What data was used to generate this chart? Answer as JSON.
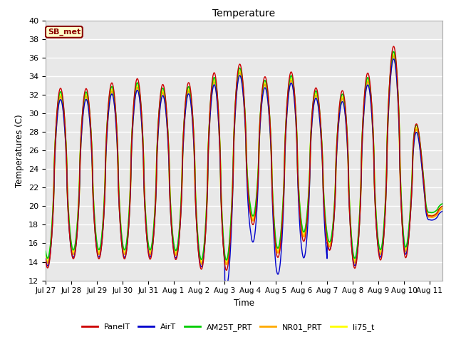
{
  "title": "Temperature",
  "ylabel": "Temperatures (C)",
  "xlabel": "Time",
  "ylim": [
    12,
    40
  ],
  "yticks": [
    12,
    14,
    16,
    18,
    20,
    22,
    24,
    26,
    28,
    30,
    32,
    34,
    36,
    38,
    40
  ],
  "plot_bg_color": "#e8e8e8",
  "fig_bg_color": "#ffffff",
  "grid_color": "#ffffff",
  "site_label": "SB_met",
  "site_label_bg": "#ffffcc",
  "site_label_border": "#8b0000",
  "lines": {
    "PanelT": {
      "color": "#cc0000",
      "lw": 1.0,
      "zorder": 5
    },
    "AirT": {
      "color": "#0000cc",
      "lw": 1.0,
      "zorder": 6
    },
    "AM25T_PRT": {
      "color": "#00cc00",
      "lw": 1.2,
      "zorder": 4
    },
    "NR01_PRT": {
      "color": "#ffaa00",
      "lw": 1.5,
      "zorder": 3
    },
    "li75_t": {
      "color": "#ffff00",
      "lw": 1.5,
      "zorder": 2
    }
  },
  "legend_colors": {
    "PanelT": "#cc0000",
    "AirT": "#0000cc",
    "AM25T_PRT": "#00cc00",
    "NR01_PRT": "#ffaa00",
    "li75_t": "#ffff00"
  },
  "n_days": 15.5,
  "xtick_days": [
    0,
    1,
    2,
    3,
    4,
    5,
    6,
    7,
    8,
    9,
    10,
    11,
    12,
    13,
    14,
    15
  ],
  "xtick_labels": [
    "Jul 27",
    "Jul 28",
    "Jul 29",
    "Jul 30",
    "Jul 31",
    "Aug 1",
    "Aug 2",
    "Aug 3",
    "Aug 4",
    "Aug 5",
    "Aug 6",
    "Aug 7",
    "Aug 8",
    "Aug 9",
    "Aug 10",
    "Aug 11"
  ]
}
